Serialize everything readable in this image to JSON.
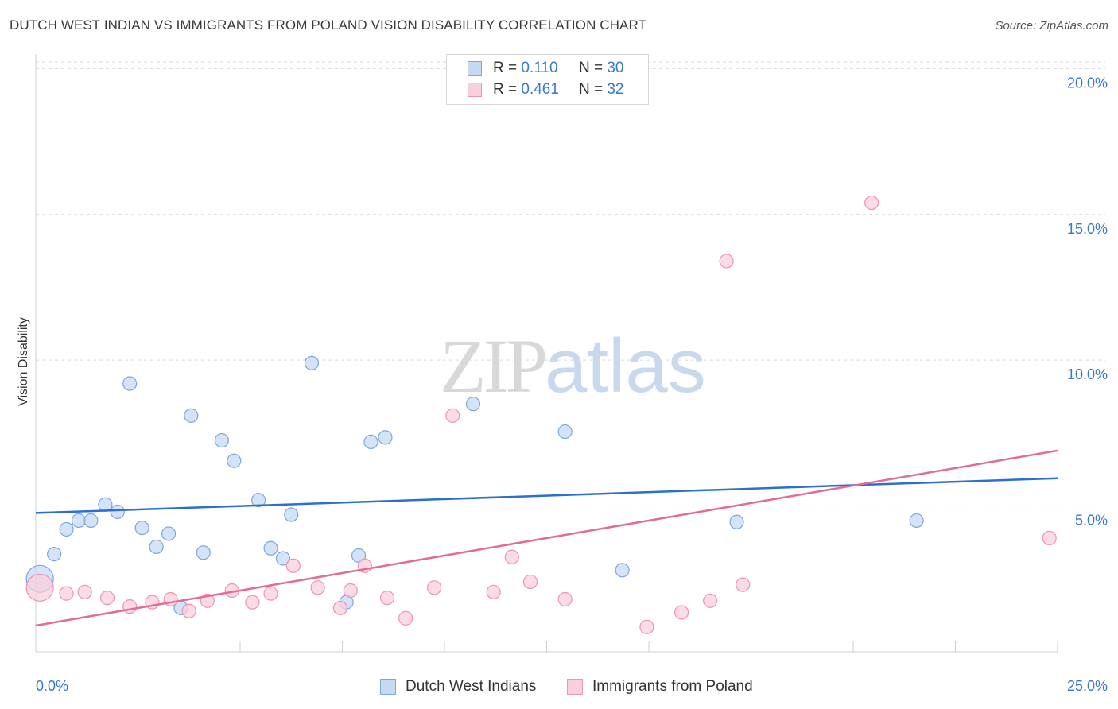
{
  "title": "DUTCH WEST INDIAN VS IMMIGRANTS FROM POLAND VISION DISABILITY CORRELATION CHART",
  "source": "Source: ZipAtlas.com",
  "watermark": {
    "zip": "ZIP",
    "atlas": "atlas"
  },
  "legend": {
    "r_label": "R =",
    "n_label": "N =",
    "rows": [
      {
        "r": "0.110",
        "n": "30"
      },
      {
        "r": "0.461",
        "n": "32"
      }
    ]
  },
  "colors": {
    "blue_fill": "#c5d9f3",
    "blue_stroke": "#7aa7e0",
    "blue_line": "#2a6fd1",
    "pink_fill": "#f9cfdb",
    "pink_stroke": "#ee94b0",
    "pink_line": "#e46b98",
    "grid": "#d9d9d9",
    "tick_text": "#3a78c9"
  },
  "chart_data": {
    "type": "scatter",
    "title": "DUTCH WEST INDIAN VS IMMIGRANTS FROM POLAND VISION DISABILITY CORRELATION CHART",
    "xlabel": "",
    "ylabel": "Vision Disability",
    "xlim": [
      0,
      25
    ],
    "ylim": [
      0,
      20.5
    ],
    "x_tick_labels": [
      "0.0%",
      "25.0%"
    ],
    "y_ticks": [
      5,
      10,
      15,
      20
    ],
    "y_tick_labels": [
      "5.0%",
      "10.0%",
      "15.0%",
      "20.0%"
    ],
    "grid": "horizontal dashed",
    "legend_position": "top-center",
    "series": [
      {
        "name": "Dutch West Indians",
        "r": 0.11,
        "n": 30,
        "trend": {
          "x": [
            0,
            25
          ],
          "y": [
            4.76,
            5.95
          ]
        },
        "points": [
          {
            "x": 0.1,
            "y": 2.5,
            "size": "large"
          },
          {
            "x": 0.45,
            "y": 3.35
          },
          {
            "x": 0.75,
            "y": 4.2
          },
          {
            "x": 1.05,
            "y": 4.5
          },
          {
            "x": 1.35,
            "y": 4.5
          },
          {
            "x": 1.7,
            "y": 5.05
          },
          {
            "x": 2.0,
            "y": 4.8
          },
          {
            "x": 2.3,
            "y": 9.2
          },
          {
            "x": 2.6,
            "y": 4.25
          },
          {
            "x": 2.95,
            "y": 3.6
          },
          {
            "x": 3.25,
            "y": 4.05
          },
          {
            "x": 3.55,
            "y": 1.5
          },
          {
            "x": 3.8,
            "y": 8.1
          },
          {
            "x": 4.1,
            "y": 3.4
          },
          {
            "x": 4.55,
            "y": 7.25
          },
          {
            "x": 4.85,
            "y": 6.55
          },
          {
            "x": 5.45,
            "y": 5.2
          },
          {
            "x": 5.75,
            "y": 3.55
          },
          {
            "x": 6.05,
            "y": 3.2
          },
          {
            "x": 6.25,
            "y": 4.7
          },
          {
            "x": 6.75,
            "y": 9.9
          },
          {
            "x": 7.6,
            "y": 1.7
          },
          {
            "x": 7.9,
            "y": 3.3
          },
          {
            "x": 8.2,
            "y": 7.2
          },
          {
            "x": 8.55,
            "y": 7.35
          },
          {
            "x": 10.7,
            "y": 8.5
          },
          {
            "x": 12.95,
            "y": 7.55
          },
          {
            "x": 14.35,
            "y": 2.8
          },
          {
            "x": 17.15,
            "y": 4.45
          },
          {
            "x": 21.55,
            "y": 4.5
          }
        ]
      },
      {
        "name": "Immigrants from Poland",
        "r": 0.461,
        "n": 32,
        "trend": {
          "x": [
            0,
            25
          ],
          "y": [
            0.9,
            6.9
          ]
        },
        "points": [
          {
            "x": 0.1,
            "y": 2.2,
            "size": "large"
          },
          {
            "x": 0.75,
            "y": 2.0
          },
          {
            "x": 1.2,
            "y": 2.05
          },
          {
            "x": 1.75,
            "y": 1.85
          },
          {
            "x": 2.3,
            "y": 1.55
          },
          {
            "x": 2.85,
            "y": 1.7
          },
          {
            "x": 3.3,
            "y": 1.8
          },
          {
            "x": 3.75,
            "y": 1.4
          },
          {
            "x": 4.2,
            "y": 1.75
          },
          {
            "x": 4.8,
            "y": 2.1
          },
          {
            "x": 5.3,
            "y": 1.7
          },
          {
            "x": 5.75,
            "y": 2.0
          },
          {
            "x": 6.3,
            "y": 2.95
          },
          {
            "x": 6.9,
            "y": 2.2
          },
          {
            "x": 7.45,
            "y": 1.5
          },
          {
            "x": 7.7,
            "y": 2.1
          },
          {
            "x": 8.05,
            "y": 2.95
          },
          {
            "x": 8.6,
            "y": 1.85
          },
          {
            "x": 9.05,
            "y": 1.15
          },
          {
            "x": 9.75,
            "y": 2.2
          },
          {
            "x": 10.2,
            "y": 8.1
          },
          {
            "x": 11.2,
            "y": 2.05
          },
          {
            "x": 11.65,
            "y": 3.25
          },
          {
            "x": 12.1,
            "y": 2.4
          },
          {
            "x": 12.95,
            "y": 1.8
          },
          {
            "x": 14.95,
            "y": 0.85
          },
          {
            "x": 15.8,
            "y": 1.35
          },
          {
            "x": 16.5,
            "y": 1.75
          },
          {
            "x": 16.9,
            "y": 13.4
          },
          {
            "x": 17.3,
            "y": 2.3
          },
          {
            "x": 20.45,
            "y": 15.4
          },
          {
            "x": 24.8,
            "y": 3.9
          }
        ]
      }
    ]
  }
}
